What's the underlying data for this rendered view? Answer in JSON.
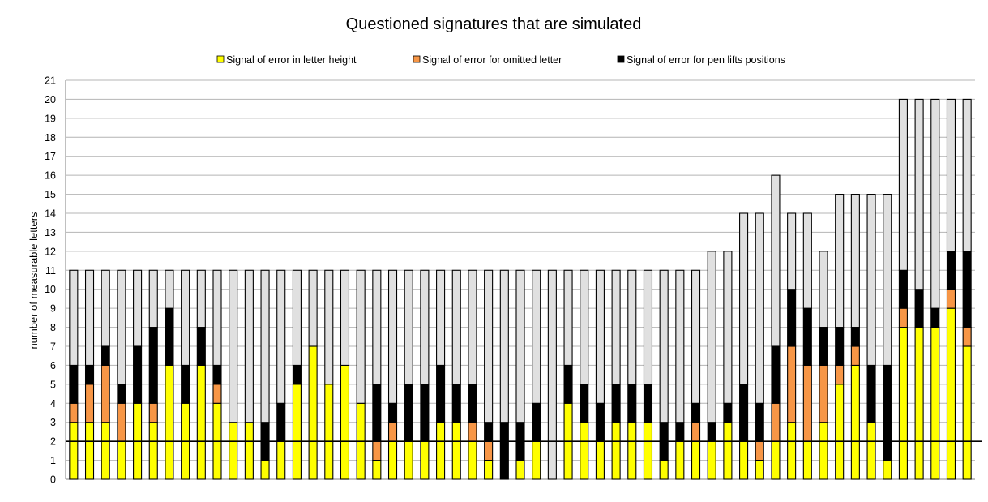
{
  "chart_data": {
    "type": "bar",
    "stacked": true,
    "title": "Questioned signatures that are simulated",
    "xlabel": "",
    "ylabel": "number of measurable letters",
    "ylim": [
      0,
      21
    ],
    "yticks": [
      0,
      1,
      2,
      3,
      4,
      5,
      6,
      7,
      8,
      9,
      10,
      11,
      12,
      13,
      14,
      15,
      16,
      17,
      18,
      19,
      20,
      21
    ],
    "grid": true,
    "legend_position": "top",
    "threshold_line": 2,
    "series": [
      {
        "name": "Signal of error in letter height",
        "color": "#ffff00",
        "values": [
          3,
          3,
          3,
          2,
          4,
          3,
          6,
          4,
          6,
          4,
          3,
          3,
          1,
          2,
          5,
          7,
          5,
          6,
          4,
          1,
          2,
          2,
          2,
          3,
          3,
          2,
          1,
          0,
          1,
          2,
          0,
          4,
          3,
          2,
          3,
          3,
          3,
          1,
          2,
          2,
          2,
          3,
          2,
          1,
          2,
          3,
          2,
          3,
          5,
          6,
          3,
          1,
          8,
          8,
          8,
          9,
          7
        ]
      },
      {
        "name": "Signal of error for omitted letter",
        "color": "#f79646",
        "values": [
          1,
          2,
          3,
          2,
          0,
          1,
          0,
          0,
          0,
          1,
          0,
          0,
          0,
          0,
          0,
          0,
          0,
          0,
          0,
          1,
          1,
          0,
          0,
          0,
          0,
          1,
          1,
          0,
          0,
          0,
          0,
          0,
          0,
          0,
          0,
          0,
          0,
          0,
          0,
          1,
          0,
          0,
          0,
          1,
          2,
          4,
          4,
          3,
          1,
          1,
          0,
          0,
          1,
          0,
          0,
          1,
          1
        ]
      },
      {
        "name": "Signal of error for pen lifts positions",
        "color": "#000000",
        "values": [
          2,
          1,
          1,
          1,
          3,
          4,
          3,
          2,
          2,
          1,
          0,
          0,
          2,
          2,
          1,
          0,
          0,
          0,
          0,
          3,
          1,
          3,
          3,
          3,
          2,
          2,
          1,
          3,
          2,
          2,
          0,
          2,
          2,
          2,
          2,
          2,
          2,
          2,
          1,
          1,
          1,
          1,
          3,
          2,
          3,
          3,
          3,
          2,
          2,
          1,
          3,
          5,
          2,
          2,
          1,
          2,
          4
        ]
      },
      {
        "name": "",
        "color": "#e0e0e0",
        "values": [
          5,
          5,
          4,
          6,
          4,
          3,
          2,
          5,
          3,
          5,
          8,
          8,
          8,
          7,
          5,
          4,
          6,
          5,
          7,
          6,
          7,
          6,
          6,
          5,
          6,
          6,
          8,
          8,
          8,
          7,
          11,
          5,
          6,
          7,
          6,
          6,
          6,
          8,
          8,
          7,
          9,
          8,
          9,
          10,
          9,
          4,
          5,
          4,
          7,
          7,
          9,
          9,
          9,
          10,
          11,
          8,
          8
        ]
      }
    ]
  }
}
